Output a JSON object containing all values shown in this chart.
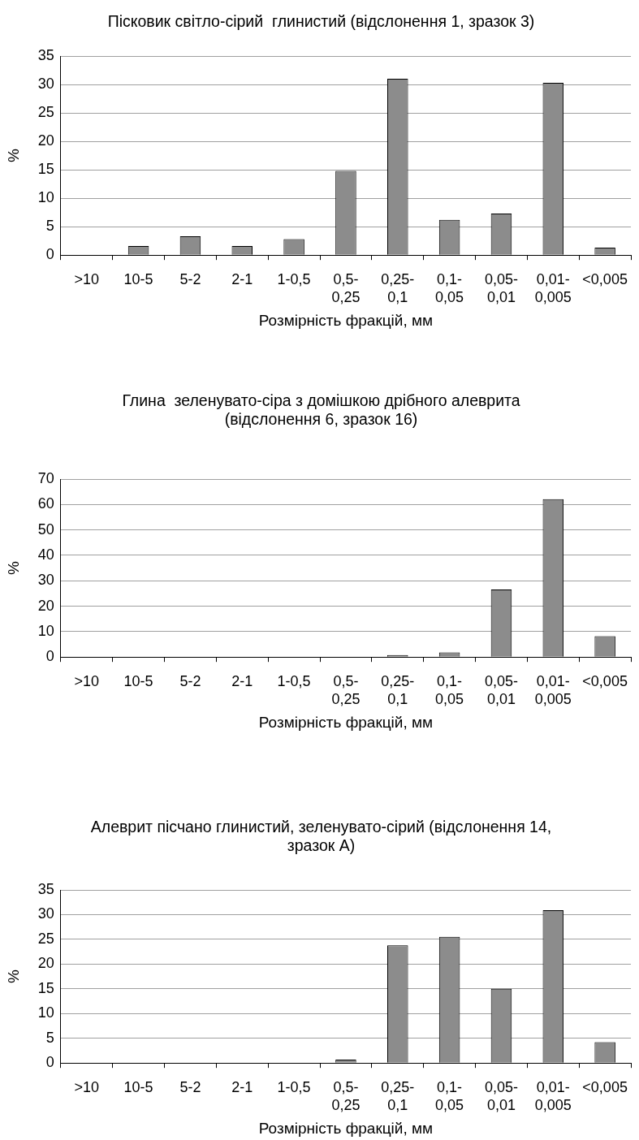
{
  "chart_data": [
    {
      "type": "bar",
      "title": "Пісковик світло-сірий  глинистий (відслонення 1, зразок 3)",
      "xlabel": "Розмірність фракцій, мм",
      "ylabel": "%",
      "categories": [
        ">10",
        "10-5",
        "5-2",
        "2-1",
        "1-0,5",
        "0,5-0,25",
        "0,25-0,1",
        "0,1-0,05",
        "0,05-0,01",
        "0,01-0,005",
        "<0,005"
      ],
      "values": [
        0,
        1.6,
        3.3,
        1.6,
        2.8,
        14.8,
        31.0,
        6.2,
        7.3,
        30.3,
        1.3
      ],
      "color": "#8c8c8c",
      "ylim": [
        0,
        35
      ],
      "yticks": [
        0,
        5,
        10,
        15,
        20,
        25,
        30,
        35
      ],
      "grid": "y"
    },
    {
      "type": "bar",
      "title": "Глина  зеленувато-сіра з домішкою дрібного алеврита (відслонення 6, зразок 16)",
      "xlabel": "Розмірність фракцій, мм",
      "ylabel": "%",
      "categories": [
        ">10",
        "10-5",
        "5-2",
        "2-1",
        "1-0,5",
        "0,5-0,25",
        "0,25-0,1",
        "0,1-0,05",
        "0,05-0,01",
        "0,01-0,005",
        "<0,005"
      ],
      "values": [
        0,
        0,
        0,
        0,
        0,
        0,
        0.8,
        1.8,
        26.6,
        62.1,
        8.2
      ],
      "color": "#8c8c8c",
      "ylim": [
        0,
        70
      ],
      "yticks": [
        0,
        10,
        20,
        30,
        40,
        50,
        60,
        70
      ],
      "grid": "y"
    },
    {
      "type": "bar",
      "title": "Алеврит пісчано глинистий, зеленувато-сірий (відслонення 14, зразок А)",
      "xlabel": "Розмірність фракцій, мм",
      "ylabel": "%",
      "categories": [
        ">10",
        "10-5",
        "5-2",
        "2-1",
        "1-0,5",
        "0,5-0,25",
        "0,25-0,1",
        "0,1-0,05",
        "0,05-0,01",
        "0,01-0,005",
        "<0,005"
      ],
      "values": [
        0,
        0,
        0,
        0,
        0,
        0.7,
        23.8,
        25.5,
        15.0,
        30.9,
        4.2
      ],
      "color": "#8c8c8c",
      "ylim": [
        0,
        35
      ],
      "yticks": [
        0,
        5,
        10,
        15,
        20,
        25,
        30,
        35
      ],
      "grid": "y"
    }
  ]
}
